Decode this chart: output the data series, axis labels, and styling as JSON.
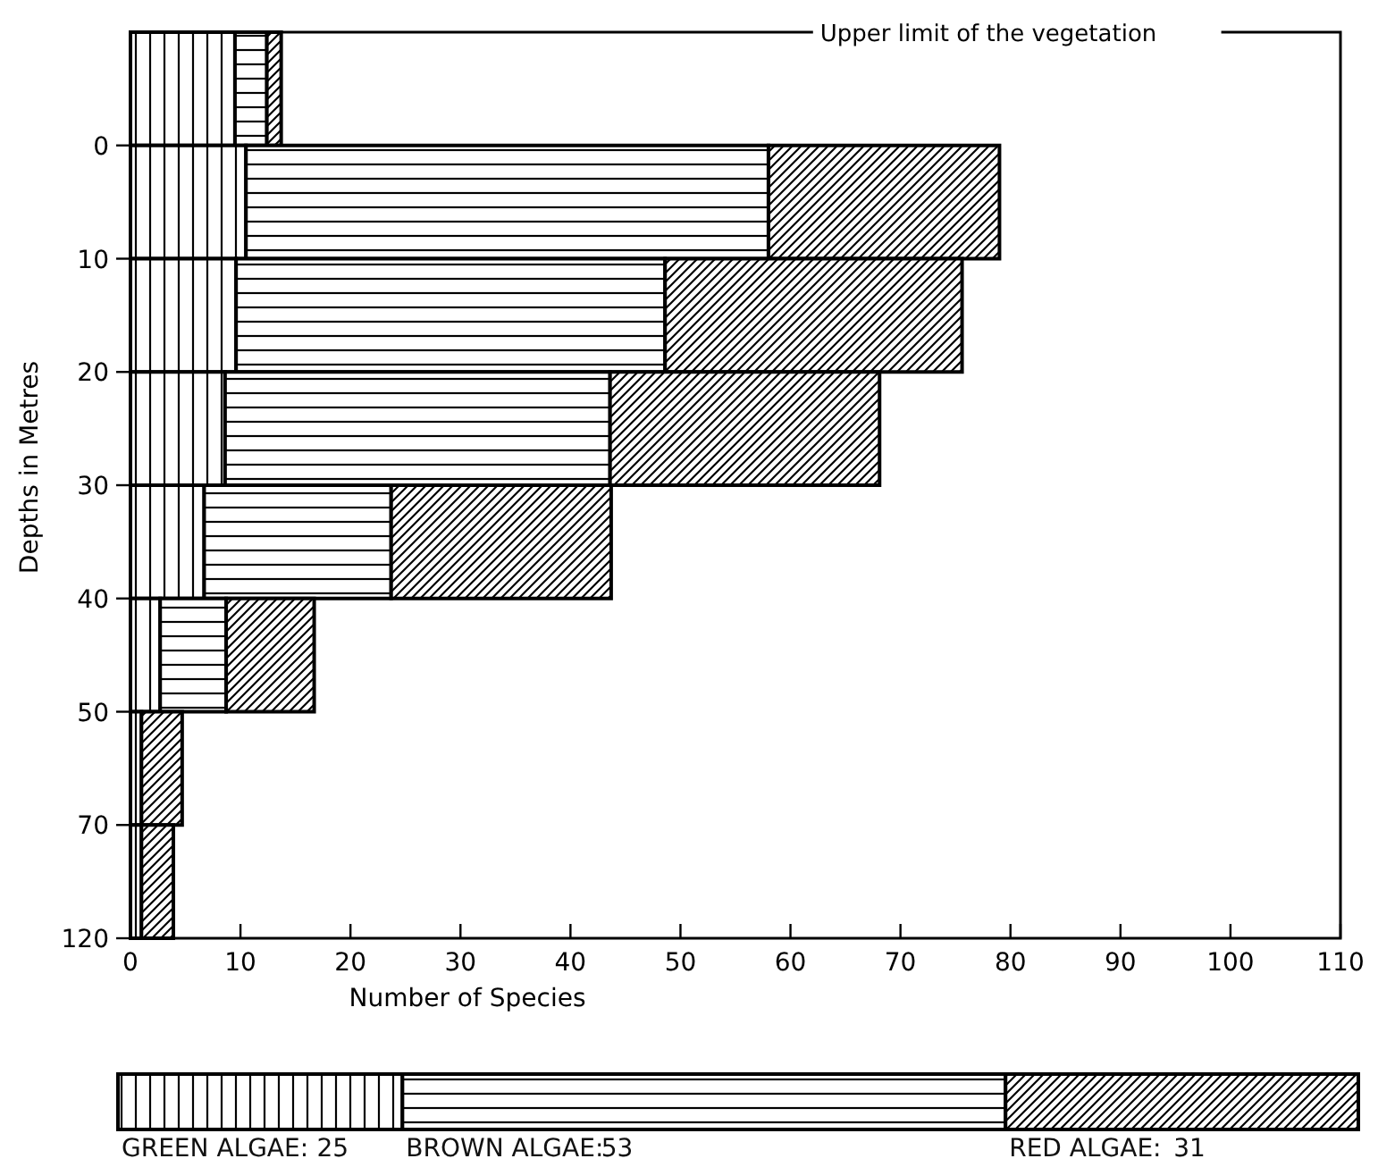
{
  "chart_data": [
    {
      "type": "bar",
      "orientation": "horizontal",
      "stacked": true,
      "xlabel": "Number of Species",
      "ylabel": "Depths in Metres",
      "annotations": [
        "Upper limit of the vegetation"
      ],
      "categories": [
        null,
        "0",
        "10",
        "20",
        "30",
        "40",
        "50",
        "70",
        "120"
      ],
      "xlim": [
        0,
        110
      ],
      "xticks": [
        0,
        10,
        20,
        30,
        40,
        50,
        60,
        70,
        80,
        90,
        100,
        110
      ],
      "grid": false,
      "legend": false,
      "series": [
        {
          "color": "#000000",
          "values": [
            9.5,
            10.5,
            9.6,
            8.6,
            6.7,
            2.7,
            1,
            1,
            null
          ]
        },
        {
          "color": "#000000",
          "values": [
            2.9,
            47.5,
            39,
            35,
            17,
            6,
            0,
            0,
            null
          ]
        },
        {
          "color": "#000000",
          "values": [
            1.3,
            21,
            27,
            24.5,
            20,
            8,
            3.7,
            2.9,
            null
          ]
        }
      ]
    },
    {
      "type": "bar",
      "orientation": "horizontal",
      "stacked": true,
      "categories": [
        null
      ],
      "legend": false,
      "series": [
        {
          "name": "GREEN ALGAE:",
          "color": "#000000",
          "values": [
            25
          ],
          "value_labels": [
            "25"
          ]
        },
        {
          "name": "BROWN ALGAE:",
          "color": "#000000",
          "values": [
            53
          ],
          "value_labels": [
            "53"
          ]
        },
        {
          "name": "RED ALGAE:",
          "color": "#000000",
          "values": [
            31
          ],
          "value_labels": [
            "31"
          ]
        }
      ]
    }
  ]
}
